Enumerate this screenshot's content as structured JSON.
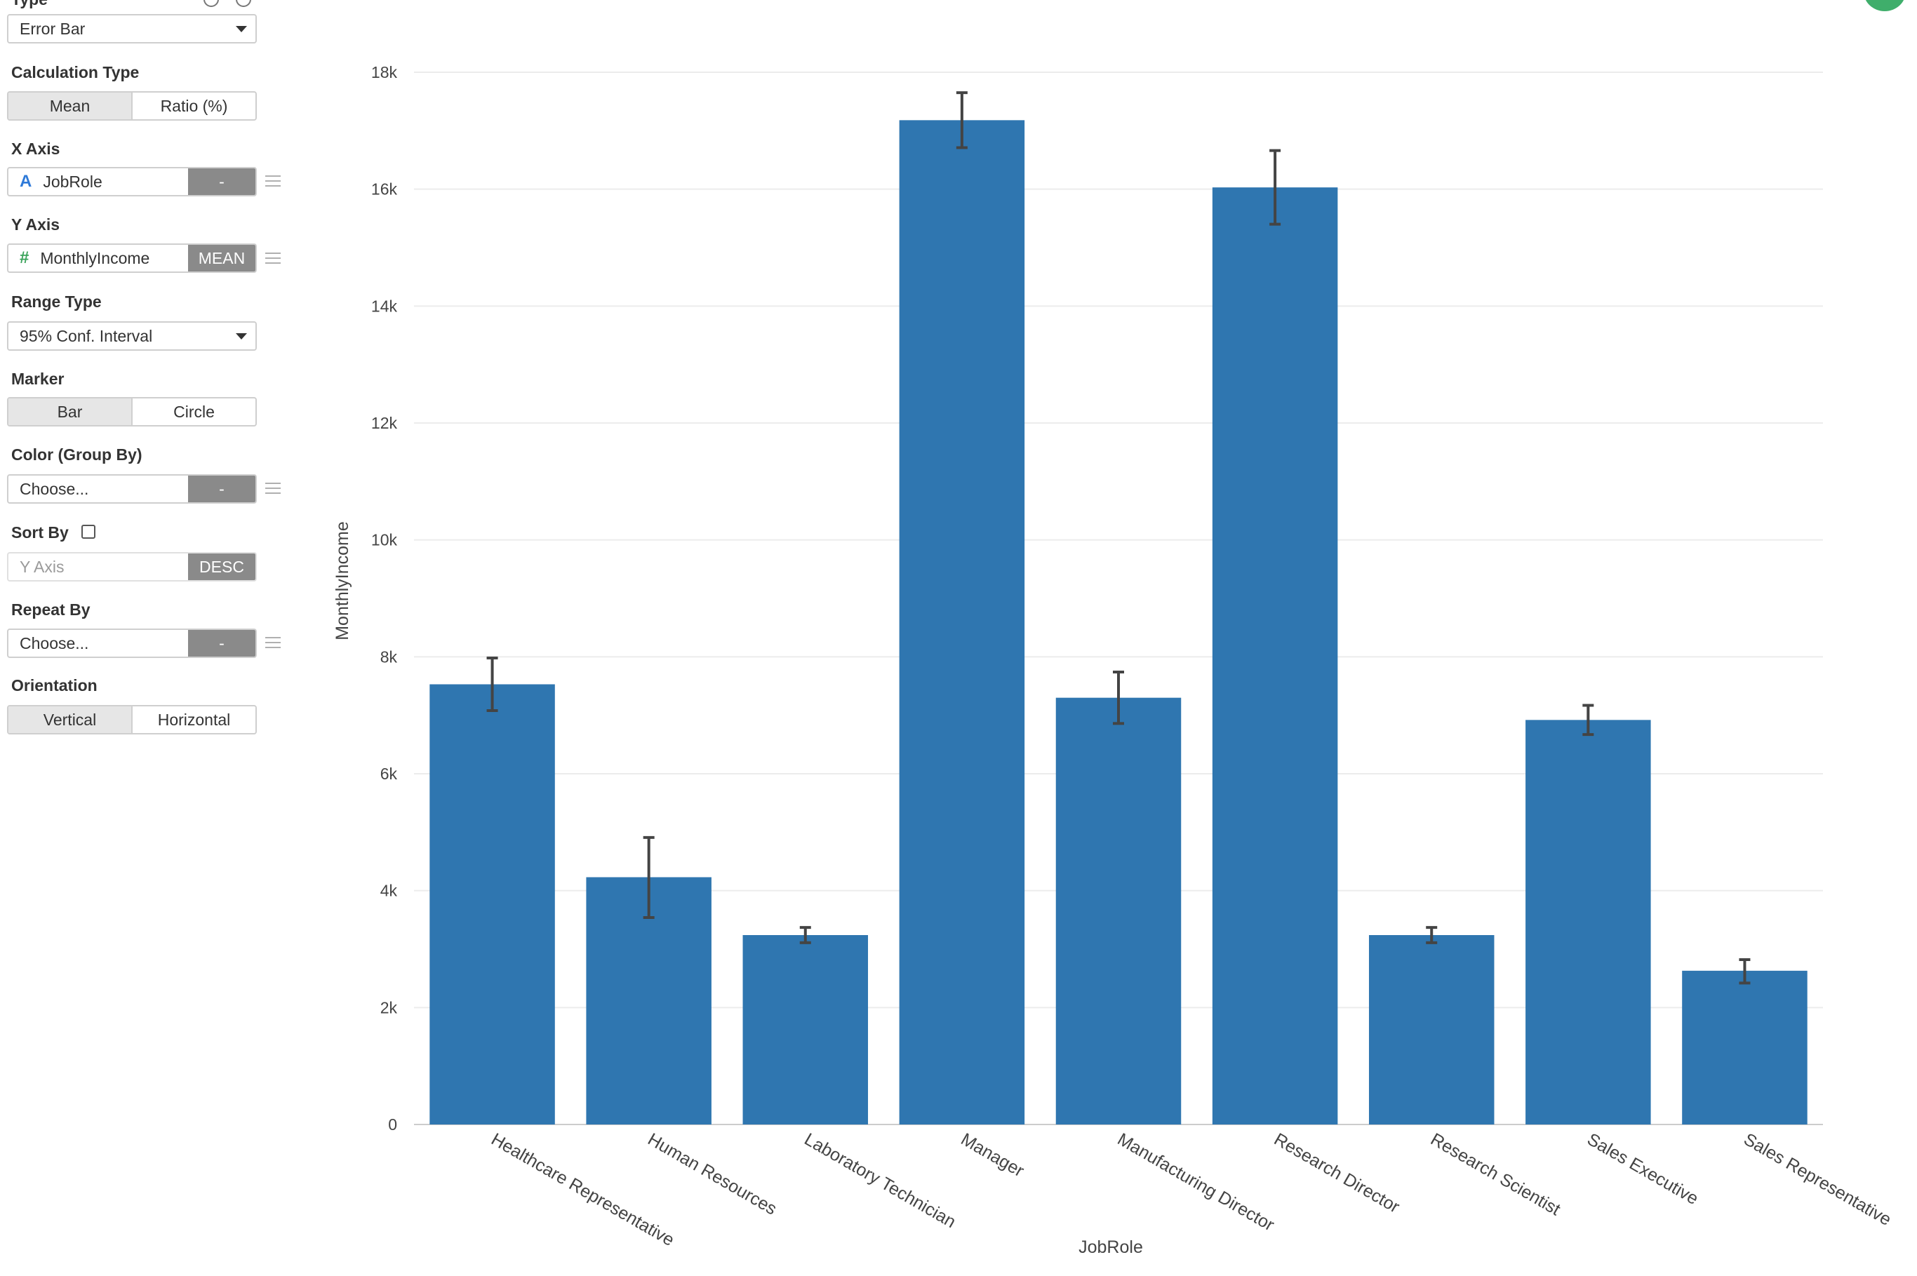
{
  "sidebar": {
    "type": {
      "title": "Type",
      "value": "Error Bar"
    },
    "calculation_type": {
      "title": "Calculation Type",
      "options": [
        "Mean",
        "Ratio (%)"
      ],
      "selected": "Mean"
    },
    "x_axis": {
      "title": "X Axis",
      "icon": "string-type-icon",
      "icon_glyph": "A",
      "column": "JobRole",
      "tag": "-"
    },
    "y_axis": {
      "title": "Y Axis",
      "icon": "number-type-icon",
      "icon_glyph": "#",
      "column": "MonthlyIncome",
      "tag": "MEAN"
    },
    "range_type": {
      "title": "Range Type",
      "value": "95% Conf. Interval"
    },
    "marker": {
      "title": "Marker",
      "options": [
        "Bar",
        "Circle"
      ],
      "selected": "Bar"
    },
    "color_group_by": {
      "title": "Color (Group By)",
      "value": "Choose...",
      "tag": "-"
    },
    "sort_by": {
      "title": "Sort By",
      "checked": false,
      "placeholder": "Y Axis",
      "tag": "DESC"
    },
    "repeat_by": {
      "title": "Repeat By",
      "value": "Choose...",
      "tag": "-"
    },
    "orientation": {
      "title": "Orientation",
      "options": [
        "Vertical",
        "Horizontal"
      ],
      "selected": "Vertical"
    }
  },
  "colors": {
    "bar": "#2f76b0",
    "error_bar": "#444444",
    "grid": "#ececec",
    "accent_circle": "#3fae6b"
  },
  "chart_data": {
    "type": "bar",
    "xlabel": "JobRole",
    "ylabel": "MonthlyIncome",
    "ylim": [
      0,
      18000
    ],
    "y_ticks": [
      0,
      2000,
      4000,
      6000,
      8000,
      10000,
      12000,
      14000,
      16000,
      18000
    ],
    "y_tick_labels": [
      "0",
      "2k",
      "4k",
      "6k",
      "8k",
      "10k",
      "12k",
      "14k",
      "16k",
      "18k"
    ],
    "grid": true,
    "categories": [
      "Healthcare Representative",
      "Human Resources",
      "Laboratory Technician",
      "Manager",
      "Manufacturing Director",
      "Research Director",
      "Research Scientist",
      "Sales Executive",
      "Sales Representative"
    ],
    "values": [
      7530,
      4230,
      3240,
      17180,
      7300,
      16030,
      3240,
      6920,
      2630
    ],
    "error_low": [
      7080,
      3540,
      3110,
      16710,
      6860,
      15400,
      3110,
      6670,
      2420
    ],
    "error_high": [
      7980,
      4910,
      3370,
      17650,
      7740,
      16660,
      3370,
      7170,
      2820
    ]
  }
}
